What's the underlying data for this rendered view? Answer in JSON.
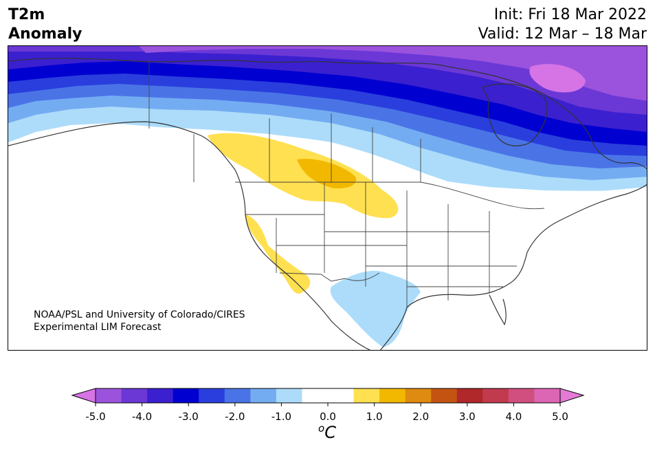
{
  "header": {
    "title_line1": "T2m",
    "title_line2": "Anomaly",
    "init": "Init: Fri 18 Mar 2022",
    "valid": "Valid: 12 Mar – 18 Mar"
  },
  "credit": {
    "line1": "NOAA/PSL and University of Colorado/CIRES",
    "line2": "Experimental LIM Forecast"
  },
  "colorbar": {
    "units_super": "o",
    "units": "C",
    "ticks": [
      "-5.0",
      "-4.0",
      "-3.0",
      "-2.0",
      "-1.0",
      "0.0",
      "1.0",
      "2.0",
      "3.0",
      "4.0",
      "5.0"
    ],
    "colors": [
      "#d674e6",
      "#9b53dd",
      "#6b38d6",
      "#3b20cf",
      "#0000d0",
      "#2a3edd",
      "#4a74e6",
      "#74acf2",
      "#acdcfa",
      "#ffffff",
      "#ffffff",
      "#ffe050",
      "#f2b800",
      "#df8a10",
      "#c45312",
      "#b0282a",
      "#c23a4e",
      "#d14f7e",
      "#dc66b4",
      "#e47ad6"
    ]
  },
  "map": {
    "anomaly_colors": {
      "cold_light": "#acdcfa",
      "cold_mid": "#74acf2",
      "cold_blue": "#4a74e6",
      "cold_deep": "#2a3edd",
      "cold_navy": "#0000d0",
      "cold_indigo": "#3b20cf",
      "cold_violet": "#6b38d6",
      "cold_purple": "#9b53dd",
      "cold_magenta": "#d674e6",
      "warm_yellow": "#ffe050",
      "warm_gold": "#f2b800"
    }
  }
}
